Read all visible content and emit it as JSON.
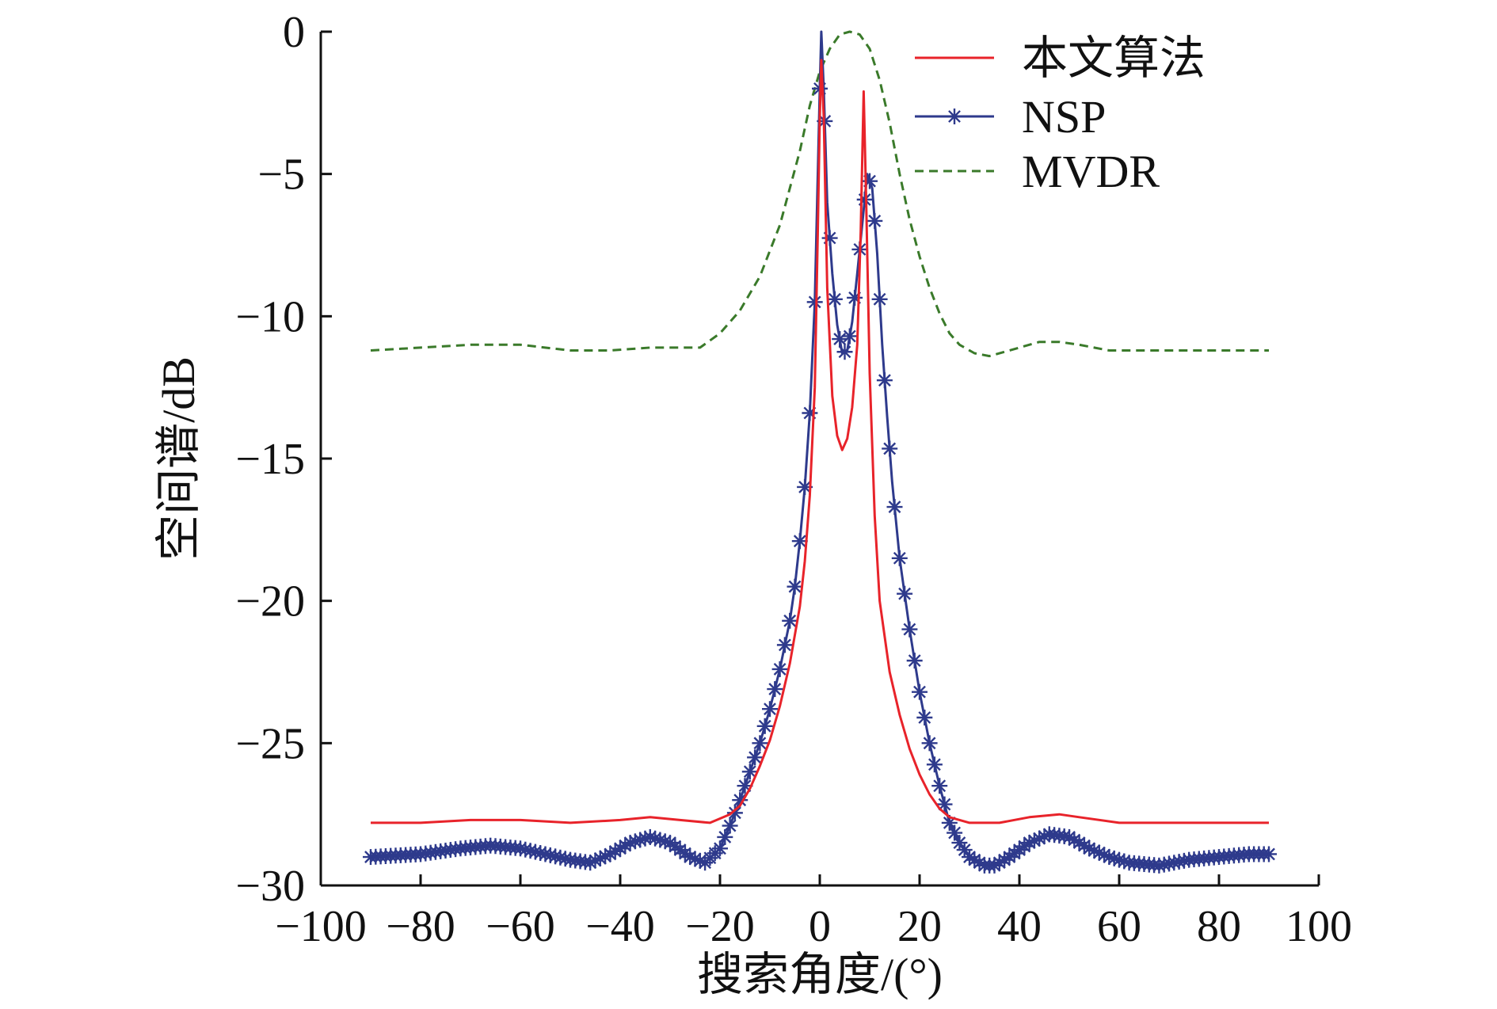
{
  "chart_data": {
    "type": "line",
    "title": "",
    "xlabel": "搜索角度/(°)",
    "ylabel": "空间谱/dB",
    "xlim": [
      -100,
      100
    ],
    "ylim": [
      -30,
      0
    ],
    "grid": false,
    "legend_position": "top-right",
    "x_ticks": [
      -100,
      -80,
      -60,
      -40,
      -20,
      0,
      20,
      40,
      60,
      80,
      100
    ],
    "x_tick_labels": [
      "−100",
      "−80",
      "−60",
      "−40",
      "−20",
      "0",
      "20",
      "40",
      "60",
      "80",
      "100"
    ],
    "y_ticks": [
      0,
      -5,
      -10,
      -15,
      -20,
      -25,
      -30
    ],
    "y_tick_labels": [
      "0",
      "−5",
      "−10",
      "−15",
      "−20",
      "−25",
      "−30"
    ],
    "series": [
      {
        "name": "本文算法",
        "color": "#e8232a",
        "style": "solid",
        "marker": "none",
        "points": [
          [
            -90,
            -27.8
          ],
          [
            -80,
            -27.8
          ],
          [
            -70,
            -27.7
          ],
          [
            -60,
            -27.7
          ],
          [
            -50,
            -27.8
          ],
          [
            -40,
            -27.7
          ],
          [
            -34,
            -27.6
          ],
          [
            -28,
            -27.7
          ],
          [
            -22,
            -27.8
          ],
          [
            -18,
            -27.5
          ],
          [
            -16,
            -27.2
          ],
          [
            -14,
            -26.6
          ],
          [
            -12,
            -25.8
          ],
          [
            -10,
            -24.9
          ],
          [
            -8,
            -23.7
          ],
          [
            -6,
            -22.2
          ],
          [
            -4,
            -20.2
          ],
          [
            -3,
            -18.6
          ],
          [
            -2,
            -16.3
          ],
          [
            -1,
            -12.5
          ],
          [
            -0.4,
            -7
          ],
          [
            0,
            -3
          ],
          [
            0.3,
            -1
          ],
          [
            0.8,
            -3
          ],
          [
            1.5,
            -9
          ],
          [
            2.5,
            -12.8
          ],
          [
            3.5,
            -14.2
          ],
          [
            4.5,
            -14.7
          ],
          [
            5.5,
            -14.3
          ],
          [
            6.5,
            -13.2
          ],
          [
            7.5,
            -11
          ],
          [
            8.2,
            -7
          ],
          [
            8.8,
            -2.1
          ],
          [
            9.3,
            -6
          ],
          [
            10,
            -12
          ],
          [
            11,
            -17
          ],
          [
            12,
            -20
          ],
          [
            14,
            -22.5
          ],
          [
            16,
            -24
          ],
          [
            18,
            -25.2
          ],
          [
            20,
            -26.1
          ],
          [
            22,
            -26.8
          ],
          [
            24,
            -27.3
          ],
          [
            26,
            -27.6
          ],
          [
            30,
            -27.8
          ],
          [
            36,
            -27.8
          ],
          [
            42,
            -27.6
          ],
          [
            48,
            -27.5
          ],
          [
            52,
            -27.6
          ],
          [
            60,
            -27.8
          ],
          [
            70,
            -27.8
          ],
          [
            80,
            -27.8
          ],
          [
            90,
            -27.8
          ]
        ]
      },
      {
        "name": "NSP",
        "color": "#2e3a8c",
        "style": "solid",
        "marker": "asterisk",
        "points": [
          [
            -90,
            -29
          ],
          [
            -80,
            -28.9
          ],
          [
            -72,
            -28.7
          ],
          [
            -66,
            -28.6
          ],
          [
            -60,
            -28.7
          ],
          [
            -55,
            -28.9
          ],
          [
            -50,
            -29.1
          ],
          [
            -46,
            -29.2
          ],
          [
            -42,
            -28.9
          ],
          [
            -38,
            -28.5
          ],
          [
            -34,
            -28.3
          ],
          [
            -30,
            -28.5
          ],
          [
            -26,
            -29.0
          ],
          [
            -23,
            -29.2
          ],
          [
            -20,
            -28.7
          ],
          [
            -18,
            -27.9
          ],
          [
            -16,
            -27.0
          ],
          [
            -14,
            -26.0
          ],
          [
            -12,
            -25.0
          ],
          [
            -10,
            -23.8
          ],
          [
            -8,
            -22.4
          ],
          [
            -6,
            -20.7
          ],
          [
            -5,
            -19.5
          ],
          [
            -4,
            -17.9
          ],
          [
            -3,
            -16.0
          ],
          [
            -2,
            -13.4
          ],
          [
            -1,
            -9.5
          ],
          [
            -0.4,
            -5
          ],
          [
            0,
            -2
          ],
          [
            0.3,
            0
          ],
          [
            0.8,
            -2
          ],
          [
            1.5,
            -6
          ],
          [
            2.5,
            -8.5
          ],
          [
            3.5,
            -10.3
          ],
          [
            4.5,
            -11.3
          ],
          [
            5.5,
            -11.2
          ],
          [
            6.5,
            -10.2
          ],
          [
            7.5,
            -8.5
          ],
          [
            8.5,
            -6.8
          ],
          [
            9.5,
            -5.0
          ],
          [
            10.5,
            -5.5
          ],
          [
            11.5,
            -7.8
          ],
          [
            12.5,
            -11
          ],
          [
            13.5,
            -13.5
          ],
          [
            14.5,
            -15.8
          ],
          [
            16,
            -18.5
          ],
          [
            18,
            -21
          ],
          [
            20,
            -23.2
          ],
          [
            22,
            -25
          ],
          [
            24,
            -26.5
          ],
          [
            26,
            -27.8
          ],
          [
            28,
            -28.5
          ],
          [
            30,
            -29.0
          ],
          [
            33,
            -29.3
          ],
          [
            35,
            -29.3
          ],
          [
            38,
            -29.0
          ],
          [
            42,
            -28.5
          ],
          [
            46,
            -28.2
          ],
          [
            50,
            -28.3
          ],
          [
            54,
            -28.7
          ],
          [
            58,
            -29.0
          ],
          [
            62,
            -29.2
          ],
          [
            68,
            -29.3
          ],
          [
            74,
            -29.1
          ],
          [
            80,
            -29.0
          ],
          [
            86,
            -28.9
          ],
          [
            90,
            -28.9
          ]
        ]
      },
      {
        "name": "MVDR",
        "color": "#3a7a2a",
        "style": "dashed",
        "marker": "none",
        "points": [
          [
            -90,
            -11.2
          ],
          [
            -80,
            -11.1
          ],
          [
            -70,
            -11.0
          ],
          [
            -60,
            -11.0
          ],
          [
            -50,
            -11.2
          ],
          [
            -42,
            -11.2
          ],
          [
            -34,
            -11.1
          ],
          [
            -28,
            -11.1
          ],
          [
            -24,
            -11.1
          ],
          [
            -20,
            -10.6
          ],
          [
            -16,
            -9.8
          ],
          [
            -12,
            -8.6
          ],
          [
            -8,
            -6.8
          ],
          [
            -4,
            -4.2
          ],
          [
            -2,
            -2.6
          ],
          [
            0,
            -1.4
          ],
          [
            2,
            -0.6
          ],
          [
            4,
            -0.1
          ],
          [
            6,
            0
          ],
          [
            8,
            -0.1
          ],
          [
            10,
            -0.6
          ],
          [
            12,
            -1.7
          ],
          [
            14,
            -3.2
          ],
          [
            16,
            -5.0
          ],
          [
            18,
            -6.6
          ],
          [
            20,
            -7.9
          ],
          [
            22,
            -9.0
          ],
          [
            24,
            -9.9
          ],
          [
            26,
            -10.6
          ],
          [
            28,
            -11.0
          ],
          [
            31,
            -11.3
          ],
          [
            34,
            -11.4
          ],
          [
            38,
            -11.2
          ],
          [
            44,
            -10.9
          ],
          [
            48,
            -10.9
          ],
          [
            52,
            -11.0
          ],
          [
            58,
            -11.2
          ],
          [
            65,
            -11.2
          ],
          [
            72,
            -11.2
          ],
          [
            80,
            -11.2
          ],
          [
            90,
            -11.2
          ]
        ]
      }
    ]
  }
}
